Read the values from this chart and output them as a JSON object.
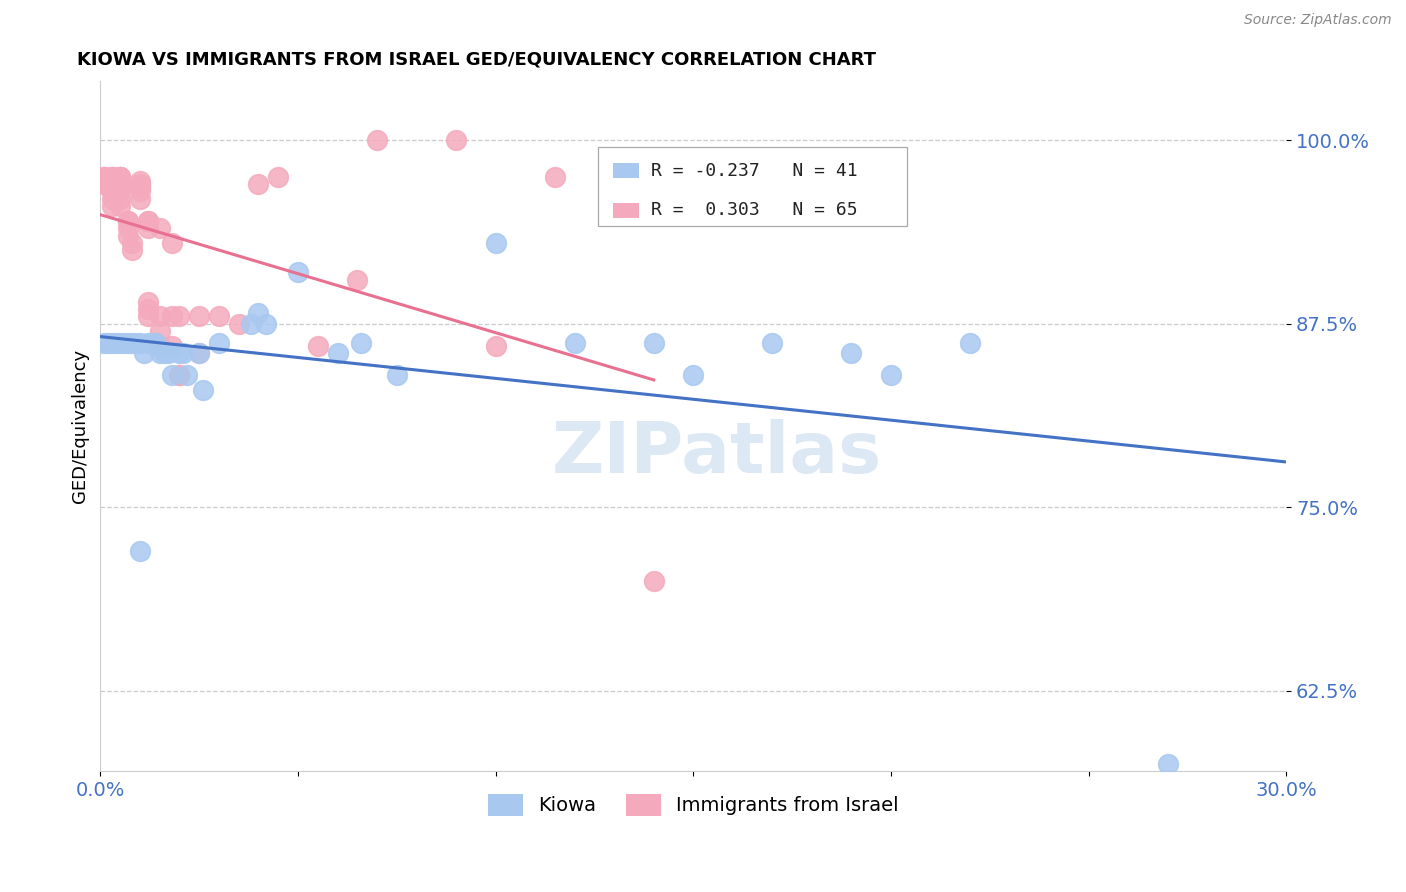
{
  "title": "KIOWA VS IMMIGRANTS FROM ISRAEL GED/EQUIVALENCY CORRELATION CHART",
  "source": "Source: ZipAtlas.com",
  "ylabel": "GED/Equivalency",
  "xlim": [
    0.0,
    0.3
  ],
  "ylim": [
    0.57,
    1.04
  ],
  "yticks": [
    0.625,
    0.75,
    0.875,
    1.0
  ],
  "ytick_labels": [
    "62.5%",
    "75.0%",
    "87.5%",
    "100.0%"
  ],
  "xticks": [
    0.0,
    0.05,
    0.1,
    0.15,
    0.2,
    0.25,
    0.3
  ],
  "xtick_labels": [
    "0.0%",
    "",
    "",
    "",
    "",
    "",
    "30.0%"
  ],
  "kiowa_color": "#A8C8F0",
  "israel_color": "#F4AABC",
  "trend_kiowa_color": "#4472C4",
  "trend_israel_color": "#E87090",
  "R_kiowa": -0.237,
  "N_kiowa": 41,
  "R_israel": 0.303,
  "N_israel": 65,
  "kiowa_x": [
    0.001,
    0.002,
    0.003,
    0.004,
    0.005,
    0.006,
    0.007,
    0.008,
    0.009,
    0.01,
    0.011,
    0.012,
    0.013,
    0.014,
    0.015,
    0.016,
    0.017,
    0.018,
    0.02,
    0.021,
    0.022,
    0.025,
    0.026,
    0.03,
    0.038,
    0.04,
    0.042,
    0.05,
    0.06,
    0.066,
    0.075,
    0.1,
    0.12,
    0.14,
    0.15,
    0.17,
    0.19,
    0.2,
    0.22,
    0.27,
    0.01
  ],
  "kiowa_y": [
    0.862,
    0.862,
    0.862,
    0.862,
    0.862,
    0.862,
    0.862,
    0.862,
    0.862,
    0.862,
    0.855,
    0.862,
    0.862,
    0.862,
    0.855,
    0.855,
    0.855,
    0.84,
    0.855,
    0.855,
    0.84,
    0.855,
    0.83,
    0.862,
    0.875,
    0.882,
    0.875,
    0.91,
    0.855,
    0.862,
    0.84,
    0.93,
    0.862,
    0.862,
    0.84,
    0.862,
    0.855,
    0.84,
    0.862,
    0.575,
    0.72
  ],
  "israel_x": [
    0.001,
    0.001,
    0.001,
    0.001,
    0.001,
    0.003,
    0.003,
    0.003,
    0.003,
    0.003,
    0.003,
    0.003,
    0.003,
    0.003,
    0.003,
    0.005,
    0.005,
    0.005,
    0.005,
    0.005,
    0.005,
    0.005,
    0.005,
    0.005,
    0.005,
    0.007,
    0.007,
    0.007,
    0.007,
    0.008,
    0.008,
    0.01,
    0.01,
    0.01,
    0.01,
    0.01,
    0.012,
    0.012,
    0.012,
    0.012,
    0.012,
    0.012,
    0.015,
    0.015,
    0.015,
    0.015,
    0.018,
    0.018,
    0.018,
    0.02,
    0.02,
    0.02,
    0.025,
    0.025,
    0.03,
    0.035,
    0.04,
    0.045,
    0.055,
    0.065,
    0.07,
    0.09,
    0.1,
    0.115,
    0.14
  ],
  "israel_y": [
    0.975,
    0.975,
    0.975,
    0.97,
    0.97,
    0.975,
    0.975,
    0.975,
    0.972,
    0.968,
    0.965,
    0.965,
    0.965,
    0.96,
    0.955,
    0.975,
    0.975,
    0.975,
    0.975,
    0.972,
    0.97,
    0.967,
    0.965,
    0.96,
    0.955,
    0.945,
    0.945,
    0.94,
    0.935,
    0.93,
    0.925,
    0.972,
    0.97,
    0.968,
    0.965,
    0.96,
    0.945,
    0.945,
    0.94,
    0.89,
    0.885,
    0.88,
    0.94,
    0.88,
    0.87,
    0.86,
    0.93,
    0.88,
    0.86,
    0.88,
    0.84,
    0.84,
    0.88,
    0.855,
    0.88,
    0.875,
    0.97,
    0.975,
    0.86,
    0.905,
    1.0,
    1.0,
    0.86,
    0.975,
    0.7
  ]
}
